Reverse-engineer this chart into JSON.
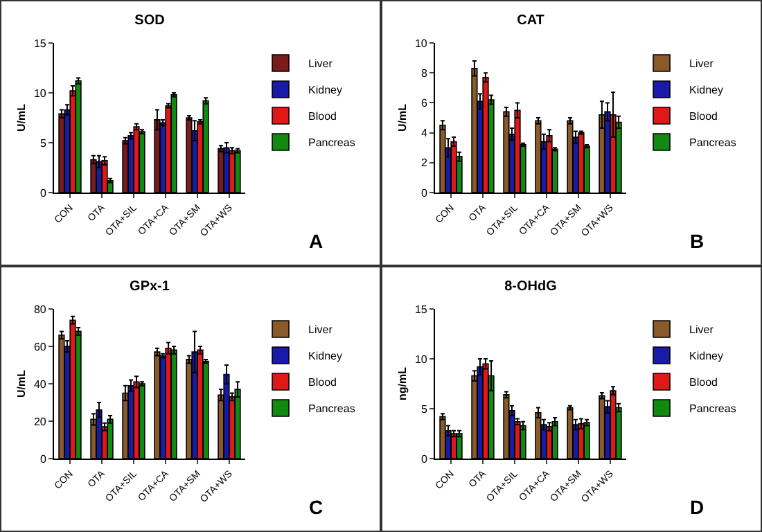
{
  "chart_data": [
    {
      "type": "bar",
      "title": "SOD",
      "ylabel": "U/mL",
      "categories": [
        "CON",
        "OTA",
        "OTA+SIL",
        "OTA+CA",
        "OTA+SM",
        "OTA+WS"
      ],
      "ylim": [
        0,
        15
      ],
      "yticks": [
        0,
        5,
        10,
        15
      ],
      "legend": "right",
      "annotations": [
        "A"
      ],
      "series": [
        {
          "name": "Liver",
          "color": "#7a1c1c",
          "values": [
            7.9,
            3.3,
            5.2,
            7.3,
            7.5,
            4.4
          ],
          "errors": [
            0.4,
            0.4,
            0.3,
            1,
            0.2,
            0.3
          ]
        },
        {
          "name": "Kidney",
          "color": "#1a1aa8",
          "values": [
            8.3,
            3.1,
            5.7,
            7.0,
            6.2,
            4.5
          ],
          "errors": [
            0.5,
            0.6,
            0.3,
            0.3,
            1,
            0.5
          ]
        },
        {
          "name": "Blood",
          "color": "#e01818",
          "values": [
            10.2,
            3.2,
            6.6,
            8.7,
            7.1,
            4.2
          ],
          "errors": [
            0.5,
            0.4,
            0.3,
            0.2,
            0.2,
            0.3
          ]
        },
        {
          "name": "Pancreas",
          "color": "#128a12",
          "values": [
            11.2,
            1.2,
            6.1,
            9.8,
            9.2,
            4.2
          ],
          "errors": [
            0.3,
            0.2,
            0.2,
            0.2,
            0.3,
            0.2
          ]
        }
      ]
    },
    {
      "type": "bar",
      "title": "CAT",
      "ylabel": "U/mL",
      "categories": [
        "CON",
        "OTA",
        "OTA+SIL",
        "OTA+CA",
        "OTA+SM",
        "OTA+WS"
      ],
      "ylim": [
        0,
        10
      ],
      "yticks": [
        0,
        2,
        4,
        6,
        8,
        10
      ],
      "legend": "right",
      "annotations": [
        "B"
      ],
      "series": [
        {
          "name": "Liver",
          "color": "#8a5a2a",
          "values": [
            4.5,
            8.3,
            5.4,
            4.8,
            4.8,
            5.2
          ],
          "errors": [
            0.3,
            0.5,
            0.3,
            0.2,
            0.2,
            0.9
          ]
        },
        {
          "name": "Kidney",
          "color": "#1a1aa8",
          "values": [
            3.0,
            6.1,
            3.9,
            3.4,
            3.7,
            5.4
          ],
          "errors": [
            0.6,
            0.5,
            0.4,
            0.5,
            0.4,
            0.6
          ]
        },
        {
          "name": "Blood",
          "color": "#e01818",
          "values": [
            3.4,
            7.7,
            5.5,
            3.8,
            4.0,
            5.2
          ],
          "errors": [
            0.3,
            0.3,
            0.5,
            0.4,
            0.1,
            1.5
          ]
        },
        {
          "name": "Pancreas",
          "color": "#128a12",
          "values": [
            2.4,
            6.2,
            3.2,
            2.9,
            3.1,
            4.7
          ],
          "errors": [
            0.3,
            0.3,
            0.1,
            0.1,
            0.1,
            0.4
          ]
        }
      ]
    },
    {
      "type": "bar",
      "title": "GPx-1",
      "ylabel": "U/mL",
      "categories": [
        "CON",
        "OTA",
        "OTA+SIL",
        "OTA+CA",
        "OTA+SM",
        "OTA+WS"
      ],
      "ylim": [
        0,
        80
      ],
      "yticks": [
        0,
        20,
        40,
        60,
        80
      ],
      "legend": "right",
      "annotations": [
        "C"
      ],
      "series": [
        {
          "name": "Liver",
          "color": "#8a5a2a",
          "values": [
            66,
            21,
            35,
            57,
            53,
            34
          ],
          "errors": [
            2,
            3,
            4,
            2,
            2,
            3
          ]
        },
        {
          "name": "Kidney",
          "color": "#1a1aa8",
          "values": [
            60,
            26,
            39,
            55,
            57,
            45
          ],
          "errors": [
            3,
            4,
            3,
            1,
            11,
            5
          ]
        },
        {
          "name": "Blood",
          "color": "#e01818",
          "values": [
            74,
            17,
            41,
            59,
            58,
            33
          ],
          "errors": [
            2,
            2,
            3,
            3,
            2,
            2
          ]
        },
        {
          "name": "Pancreas",
          "color": "#128a12",
          "values": [
            68,
            21,
            40,
            58,
            52,
            37
          ],
          "errors": [
            2,
            2,
            1,
            2,
            1,
            4
          ]
        }
      ]
    },
    {
      "type": "bar",
      "title": "8-OHdG",
      "ylabel": "ng/mL",
      "categories": [
        "CON",
        "OTA",
        "OTA+SIL",
        "OTA+CA",
        "OTA+SM",
        "OTA+WS"
      ],
      "ylim": [
        0,
        15
      ],
      "yticks": [
        0,
        5,
        10,
        15
      ],
      "legend": "right",
      "annotations": [
        "D"
      ],
      "series": [
        {
          "name": "Liver",
          "color": "#8a5a2a",
          "values": [
            4.2,
            8.3,
            6.4,
            4.6,
            5.1,
            6.3
          ],
          "errors": [
            0.3,
            0.5,
            0.3,
            0.5,
            0.2,
            0.3
          ]
        },
        {
          "name": "Kidney",
          "color": "#1a1aa8",
          "values": [
            2.8,
            9.2,
            4.8,
            3.4,
            3.4,
            5.2
          ],
          "errors": [
            0.5,
            0.8,
            0.5,
            0.5,
            0.5,
            0.6
          ]
        },
        {
          "name": "Blood",
          "color": "#e01818",
          "values": [
            2.5,
            9.5,
            3.7,
            3.2,
            3.5,
            6.8
          ],
          "errors": [
            0.3,
            0.5,
            0.3,
            0.4,
            0.5,
            0.4
          ]
        },
        {
          "name": "Pancreas",
          "color": "#128a12",
          "values": [
            2.5,
            8.3,
            3.3,
            3.7,
            3.6,
            5.1
          ],
          "errors": [
            0.3,
            1.5,
            0.4,
            0.4,
            0.3,
            0.4
          ]
        }
      ]
    }
  ]
}
